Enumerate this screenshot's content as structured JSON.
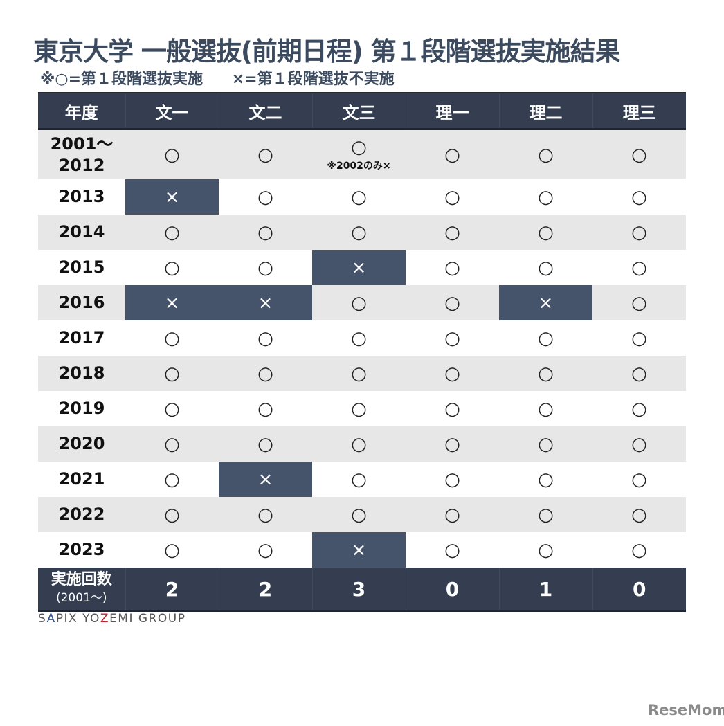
{
  "title": "東京大学 一般選抜(前期日程) 第１段階選抜実施結果",
  "legend": {
    "implemented": "※○=第１段階選抜実施",
    "not_implemented": "×=第１段階選抜不実施"
  },
  "table": {
    "headers": [
      "年度",
      "文一",
      "文二",
      "文三",
      "理一",
      "理二",
      "理三"
    ],
    "rows": [
      {
        "year": "2001〜2012",
        "year_line1": "2001〜",
        "year_line2": "2012",
        "values": [
          "○",
          "○",
          "○",
          "○",
          "○",
          "○"
        ],
        "note_col": 3,
        "note": "※2002のみ×"
      },
      {
        "year": "2013",
        "values": [
          "×",
          "○",
          "○",
          "○",
          "○",
          "○"
        ]
      },
      {
        "year": "2014",
        "values": [
          "○",
          "○",
          "○",
          "○",
          "○",
          "○"
        ]
      },
      {
        "year": "2015",
        "values": [
          "○",
          "○",
          "×",
          "○",
          "○",
          "○"
        ]
      },
      {
        "year": "2016",
        "values": [
          "×",
          "×",
          "○",
          "○",
          "×",
          "○"
        ]
      },
      {
        "year": "2017",
        "values": [
          "○",
          "○",
          "○",
          "○",
          "○",
          "○"
        ]
      },
      {
        "year": "2018",
        "values": [
          "○",
          "○",
          "○",
          "○",
          "○",
          "○"
        ]
      },
      {
        "year": "2019",
        "values": [
          "○",
          "○",
          "○",
          "○",
          "○",
          "○"
        ]
      },
      {
        "year": "2020",
        "values": [
          "○",
          "○",
          "○",
          "○",
          "○",
          "○"
        ]
      },
      {
        "year": "2021",
        "values": [
          "○",
          "×",
          "○",
          "○",
          "○",
          "○"
        ]
      },
      {
        "year": "2022",
        "values": [
          "○",
          "○",
          "○",
          "○",
          "○",
          "○"
        ]
      },
      {
        "year": "2023",
        "values": [
          "○",
          "○",
          "×",
          "○",
          "○",
          "○"
        ]
      }
    ],
    "footer": {
      "label": "実施回数",
      "sublabel": "(2001〜)",
      "values": [
        "2",
        "2",
        "3",
        "0",
        "1",
        "0"
      ]
    }
  },
  "credit": {
    "part1": "S",
    "part2": "A",
    "part3": "PIX YO",
    "part4": "Z",
    "part5": "EMI GROUP"
  },
  "watermark": "ReseMom",
  "colors": {
    "header_bg": "#343e50",
    "x_cell_bg": "#46546b",
    "alt_row_bg": "#e7e7e7",
    "title": "#3b4a5e"
  },
  "chart_data": {
    "type": "table",
    "title": "東京大学 一般選抜(前期日程) 第１段階選抜実施結果",
    "subtitle": "※○=第１段階選抜実施 ×=第１段階選抜不実施",
    "columns": [
      "年度",
      "文一",
      "文二",
      "文三",
      "理一",
      "理二",
      "理三"
    ],
    "rows": [
      [
        "2001〜2012",
        "○",
        "○",
        "○ (※2002のみ×)",
        "○",
        "○",
        "○"
      ],
      [
        "2013",
        "×",
        "○",
        "○",
        "○",
        "○",
        "○"
      ],
      [
        "2014",
        "○",
        "○",
        "○",
        "○",
        "○",
        "○"
      ],
      [
        "2015",
        "○",
        "○",
        "×",
        "○",
        "○",
        "○"
      ],
      [
        "2016",
        "×",
        "×",
        "○",
        "○",
        "×",
        "○"
      ],
      [
        "2017",
        "○",
        "○",
        "○",
        "○",
        "○",
        "○"
      ],
      [
        "2018",
        "○",
        "○",
        "○",
        "○",
        "○",
        "○"
      ],
      [
        "2019",
        "○",
        "○",
        "○",
        "○",
        "○",
        "○"
      ],
      [
        "2020",
        "○",
        "○",
        "○",
        "○",
        "○",
        "○"
      ],
      [
        "2021",
        "○",
        "×",
        "○",
        "○",
        "○",
        "○"
      ],
      [
        "2022",
        "○",
        "○",
        "○",
        "○",
        "○",
        "○"
      ],
      [
        "2023",
        "○",
        "○",
        "×",
        "○",
        "○",
        "○"
      ]
    ],
    "footer": [
      "実施回数(2001〜)",
      "2",
      "2",
      "3",
      "0",
      "1",
      "0"
    ]
  }
}
